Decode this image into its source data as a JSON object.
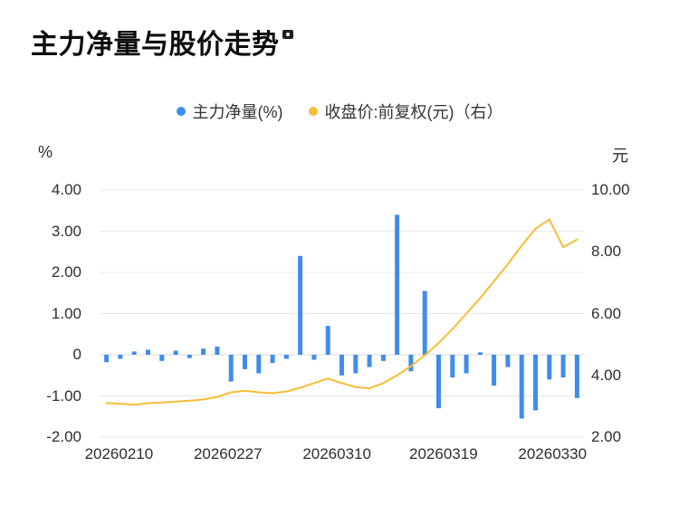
{
  "title": "主力净量与股价走势",
  "icons": {
    "title_icon": "camera-icon"
  },
  "chart_data": {
    "type": "mixed",
    "title": "主力净量与股价走势",
    "legend_position": "top",
    "grid": true,
    "colors": {
      "grid": "#e9e9e9",
      "zero_line": "#d9d9d9",
      "background": "#ffffff",
      "text": "#333333",
      "bar": "#3f8cee",
      "line": "#f7bd34"
    },
    "left_axis": {
      "unit": "%",
      "min": -2,
      "max": 4,
      "ticks": [
        "4.00",
        "3.00",
        "2.00",
        "1.00",
        "0",
        "-1.00",
        "-2.00"
      ]
    },
    "right_axis": {
      "unit": "元",
      "min": 2,
      "max": 10,
      "ticks": [
        "10.00",
        "8.00",
        "6.00",
        "4.00",
        "2.00"
      ]
    },
    "x_axis": {
      "tick_labels": [
        "20260210",
        "20260227",
        "20260310",
        "20260319",
        "20260330"
      ],
      "tick_positions": [
        0.04,
        0.265,
        0.49,
        0.71,
        0.935
      ]
    },
    "series": [
      {
        "name": "主力净量(%)",
        "type": "bar",
        "axis": "left",
        "color": "#3f8cee",
        "values": [
          -0.18,
          -0.1,
          0.08,
          0.12,
          -0.15,
          0.1,
          -0.08,
          0.15,
          0.2,
          -0.65,
          -0.35,
          -0.45,
          -0.2,
          -0.1,
          2.4,
          -0.12,
          0.7,
          -0.5,
          -0.45,
          -0.3,
          -0.15,
          3.4,
          -0.4,
          1.55,
          -1.3,
          -0.55,
          -0.45,
          0.06,
          -0.75,
          -0.3,
          -1.55,
          -1.35,
          -0.6,
          -0.55,
          -1.05
        ]
      },
      {
        "name": "收盘价:前复权(元)（右）",
        "type": "line",
        "axis": "right",
        "color": "#f7bd34",
        "values": [
          3.1,
          3.08,
          3.05,
          3.1,
          3.12,
          3.15,
          3.18,
          3.22,
          3.3,
          3.45,
          3.5,
          3.45,
          3.42,
          3.48,
          3.6,
          3.75,
          3.9,
          3.75,
          3.62,
          3.58,
          3.75,
          4.0,
          4.3,
          4.65,
          5.05,
          5.5,
          6.0,
          6.5,
          7.05,
          7.6,
          8.2,
          8.75,
          9.05,
          8.15,
          8.4
        ]
      }
    ]
  }
}
